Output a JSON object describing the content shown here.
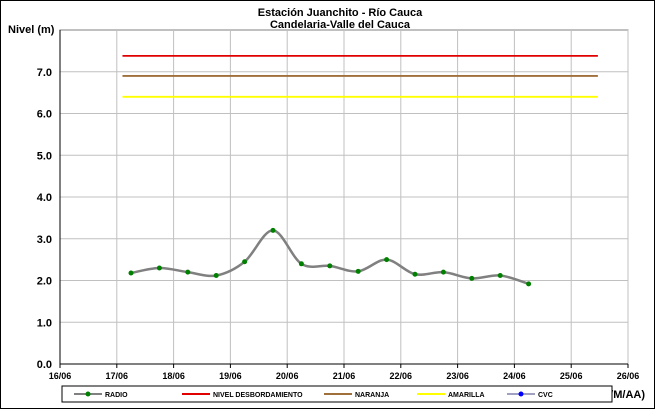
{
  "chart_data": {
    "type": "line",
    "title": "Estación Juanchito - Río Cauca",
    "subtitle": "Candelaria-Valle del Cauca",
    "y_label": "Nivel (m)",
    "x_label": "Fecha (DD/M/AA)",
    "xlim": [
      16,
      26
    ],
    "xticks": [
      {
        "value": 16,
        "label": "16/06"
      },
      {
        "value": 17,
        "label": "17/06"
      },
      {
        "value": 18,
        "label": "18/06"
      },
      {
        "value": 19,
        "label": "19/06"
      },
      {
        "value": 20,
        "label": "20/06"
      },
      {
        "value": 21,
        "label": "21/06"
      },
      {
        "value": 22,
        "label": "22/06"
      },
      {
        "value": 23,
        "label": "23/06"
      },
      {
        "value": 24,
        "label": "24/06"
      },
      {
        "value": 25,
        "label": "25/06"
      },
      {
        "value": 26,
        "label": "26/06"
      }
    ],
    "ylim": [
      0,
      8
    ],
    "yticks": [
      {
        "value": 0,
        "label": "0.0"
      },
      {
        "value": 1,
        "label": "1.0"
      },
      {
        "value": 2,
        "label": "2.0"
      },
      {
        "value": 3,
        "label": "3.0"
      },
      {
        "value": 4,
        "label": "4.0"
      },
      {
        "value": 5,
        "label": "5.0"
      },
      {
        "value": 6,
        "label": "6.0"
      },
      {
        "value": 7,
        "label": "7.0"
      }
    ],
    "grid": true,
    "legend": "bottom",
    "series": [
      {
        "name": "RADIO",
        "color": "#808080",
        "marker_color": "#008000",
        "smooth": true,
        "x": [
          17.25,
          17.75,
          18.25,
          18.75,
          19.25,
          19.75,
          20.25,
          20.75,
          21.25,
          21.75,
          22.25,
          22.75,
          23.25,
          23.75,
          24.25
        ],
        "values": [
          2.18,
          2.3,
          2.2,
          2.12,
          2.45,
          3.2,
          2.4,
          2.35,
          2.22,
          2.5,
          2.15,
          2.2,
          2.05,
          2.12,
          1.92
        ]
      },
      {
        "name": "NIVEL DESBORDAMIENTO",
        "color": "#e00000",
        "x": [
          17.1,
          25.47
        ],
        "values": [
          7.38,
          7.38
        ]
      },
      {
        "name": "NARANJA",
        "color": "#a0703c",
        "x": [
          17.1,
          25.47
        ],
        "values": [
          6.9,
          6.9
        ]
      },
      {
        "name": "AMARILLA",
        "color": "#ffff00",
        "x": [
          17.1,
          25.47
        ],
        "values": [
          6.4,
          6.4
        ]
      },
      {
        "name": "CVC",
        "color": "#a0a0c0",
        "marker_color": "#0000ff",
        "x": [],
        "values": []
      }
    ]
  }
}
